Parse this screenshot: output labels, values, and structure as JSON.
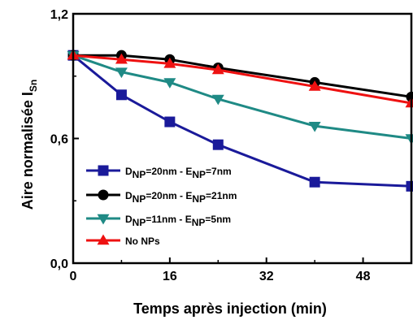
{
  "chart_data": {
    "type": "line",
    "xlabel": "Temps après injection (min)",
    "ylabel_main": "Aire normalisée I",
    "ylabel_sub": "Sn",
    "xlim": [
      0,
      56
    ],
    "ylim": [
      0,
      1.2
    ],
    "xticks": [
      0,
      16,
      32,
      48
    ],
    "xtick_labels": [
      "0",
      "16",
      "32",
      "48"
    ],
    "yticks": [
      0,
      0.6,
      1.2
    ],
    "ytick_labels": [
      "0,0",
      "0,6",
      "1,2"
    ],
    "legend_position": "bottom-left",
    "series": [
      {
        "legend": [
          {
            "t": "D",
            "sub": false
          },
          {
            "t": "NP",
            "sub": true
          },
          {
            "t": "=20nm - E",
            "sub": false
          },
          {
            "t": "NP",
            "sub": true
          },
          {
            "t": "=7nm",
            "sub": false
          }
        ],
        "color": "#1a1a9a",
        "marker": "square",
        "x": [
          0,
          8,
          16,
          24,
          40,
          56
        ],
        "y": [
          1.0,
          0.81,
          0.68,
          0.57,
          0.39,
          0.37
        ]
      },
      {
        "legend": [
          {
            "t": "D",
            "sub": false
          },
          {
            "t": "NP",
            "sub": true
          },
          {
            "t": "=20nm - E",
            "sub": false
          },
          {
            "t": "NP",
            "sub": true
          },
          {
            "t": "=21nm",
            "sub": false
          }
        ],
        "color": "#000000",
        "marker": "circle",
        "x": [
          0,
          8,
          16,
          24,
          40,
          56
        ],
        "y": [
          1.0,
          1.0,
          0.98,
          0.94,
          0.87,
          0.8
        ]
      },
      {
        "legend": [
          {
            "t": "D",
            "sub": false
          },
          {
            "t": "NP",
            "sub": true
          },
          {
            "t": "=11nm - E",
            "sub": false
          },
          {
            "t": "NP",
            "sub": true
          },
          {
            "t": "=5nm",
            "sub": false
          }
        ],
        "color": "#1f8a85",
        "marker": "triangle-down",
        "x": [
          0,
          8,
          16,
          24,
          40,
          56
        ],
        "y": [
          1.0,
          0.92,
          0.87,
          0.79,
          0.66,
          0.6
        ]
      },
      {
        "legend": [
          {
            "t": "No NPs",
            "sub": false
          }
        ],
        "color": "#ee1111",
        "marker": "triangle-up",
        "x": [
          0,
          8,
          16,
          24,
          40,
          56
        ],
        "y": [
          1.0,
          0.98,
          0.96,
          0.93,
          0.85,
          0.77
        ]
      }
    ]
  }
}
